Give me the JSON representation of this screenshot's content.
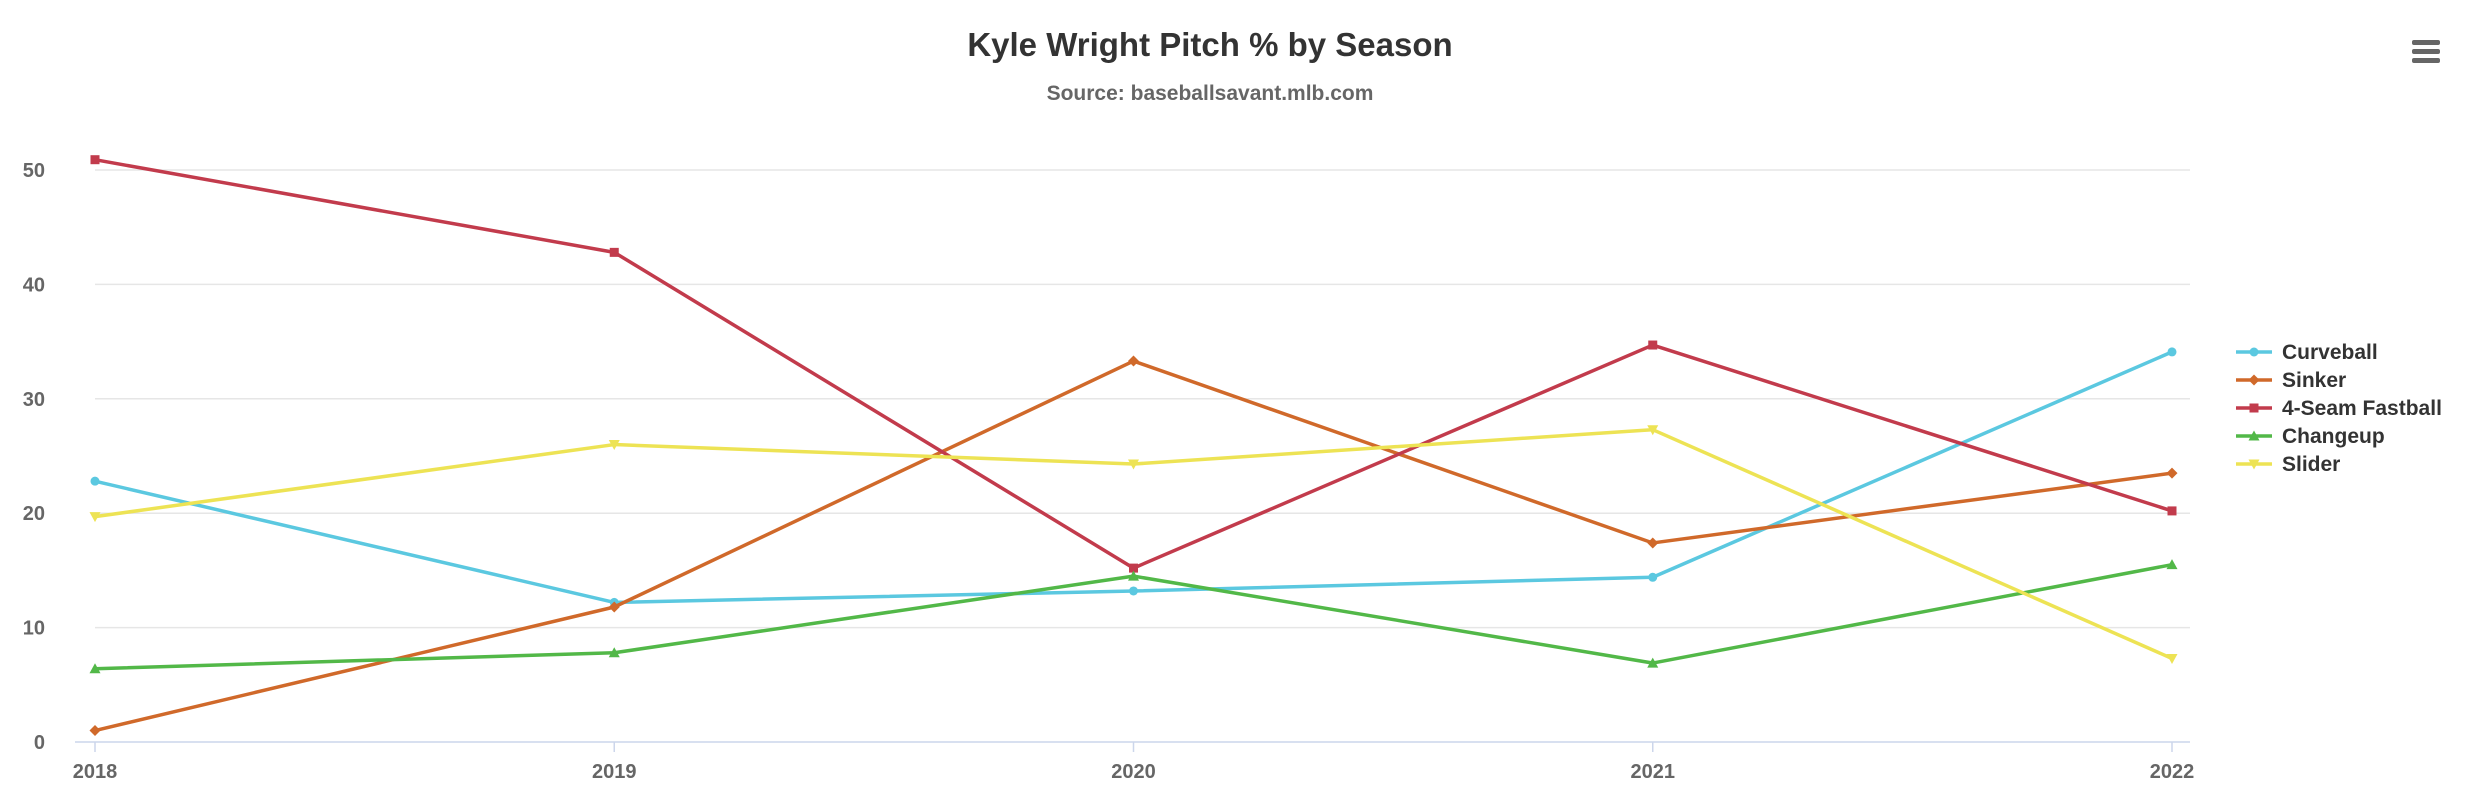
{
  "chart_data": {
    "type": "line",
    "title": "Kyle Wright Pitch % by Season",
    "subtitle": "Source: baseballsavant.mlb.com",
    "xlabel": "",
    "ylabel": "",
    "x": [
      "2018",
      "2019",
      "2020",
      "2021",
      "2022"
    ],
    "y_ticks": [
      "0",
      "10",
      "20",
      "30",
      "40",
      "50"
    ],
    "ylim": [
      0,
      50
    ],
    "grid": true,
    "legend_position": "right",
    "series": [
      {
        "name": "Curveball",
        "color": "#5bc8e0",
        "marker": "circle",
        "values": [
          22.8,
          12.2,
          13.2,
          14.4,
          34.1
        ]
      },
      {
        "name": "Sinker",
        "color": "#d0692a",
        "marker": "diamond",
        "values": [
          1.0,
          11.8,
          33.3,
          17.4,
          23.5
        ]
      },
      {
        "name": "4-Seam Fastball",
        "color": "#c23b4c",
        "marker": "square",
        "values": [
          50.9,
          42.8,
          15.2,
          34.7,
          20.2
        ]
      },
      {
        "name": "Changeup",
        "color": "#52b848",
        "marker": "triangle",
        "values": [
          6.4,
          7.8,
          14.5,
          6.9,
          15.5
        ]
      },
      {
        "name": "Slider",
        "color": "#ede354",
        "marker": "triangle-down",
        "values": [
          19.7,
          26.0,
          24.3,
          27.3,
          7.3
        ]
      }
    ]
  },
  "menu": {
    "icon": "hamburger-menu-icon"
  }
}
